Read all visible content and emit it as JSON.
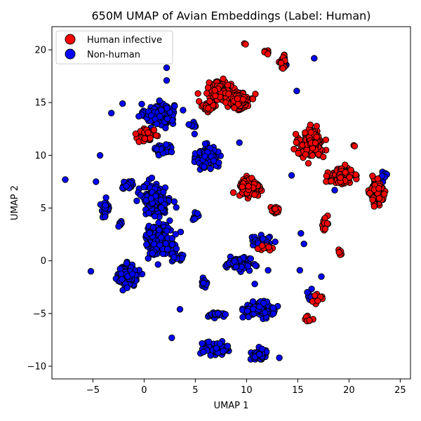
{
  "chart_data": {
    "type": "scatter",
    "title": "650M UMAP of Avian Embeddings (Label: Human)",
    "xlabel": "UMAP 1",
    "ylabel": "UMAP 2",
    "xlim": [
      -9,
      26
    ],
    "ylim": [
      -11.2,
      22.2
    ],
    "xticks": [
      -5,
      0,
      5,
      10,
      15,
      20,
      25
    ],
    "yticks": [
      -10,
      -5,
      0,
      5,
      10,
      15,
      20
    ],
    "grid": false,
    "legend_position": "top-left",
    "series": [
      {
        "name": "Human infective",
        "color": "#ff0000",
        "edge_color": "#000000",
        "clusters": [
          {
            "cx": 7.3,
            "cy": 16.2,
            "sx": 0.9,
            "sy": 0.7,
            "n": 160
          },
          {
            "cx": 9.3,
            "cy": 15.2,
            "sx": 0.9,
            "sy": 0.8,
            "n": 110
          },
          {
            "cx": 6.2,
            "cy": 14.6,
            "sx": 0.6,
            "sy": 0.4,
            "n": 35
          },
          {
            "cx": 10.3,
            "cy": 6.9,
            "sx": 0.9,
            "sy": 0.8,
            "n": 170
          },
          {
            "cx": 12.8,
            "cy": 4.8,
            "sx": 0.6,
            "sy": 0.3,
            "n": 25
          },
          {
            "cx": 16.3,
            "cy": 11.2,
            "sx": 1.0,
            "sy": 1.1,
            "n": 210
          },
          {
            "cx": 19.3,
            "cy": 8.0,
            "sx": 1.1,
            "sy": 0.7,
            "n": 110
          },
          {
            "cx": 22.8,
            "cy": 6.5,
            "sx": 0.7,
            "sy": 1.1,
            "n": 90
          },
          {
            "cx": 0.3,
            "cy": 12.0,
            "sx": 0.8,
            "sy": 0.6,
            "n": 40
          },
          {
            "cx": 17.6,
            "cy": 3.5,
            "sx": 0.3,
            "sy": 0.5,
            "n": 15
          },
          {
            "cx": 13.5,
            "cy": 18.6,
            "sx": 0.3,
            "sy": 0.8,
            "n": 15
          },
          {
            "cx": 16.8,
            "cy": -3.6,
            "sx": 0.5,
            "sy": 0.5,
            "n": 10
          },
          {
            "cx": 15.8,
            "cy": -5.5,
            "sx": 0.4,
            "sy": 0.2,
            "n": 8
          },
          {
            "cx": 19.2,
            "cy": 0.8,
            "sx": 0.3,
            "sy": 0.3,
            "n": 6
          },
          {
            "cx": 11.5,
            "cy": 1.2,
            "sx": 0.8,
            "sy": 0.2,
            "n": 12
          },
          {
            "cx": 12.0,
            "cy": 19.8,
            "sx": 0.3,
            "sy": 0.2,
            "n": 5
          },
          {
            "cx": 9.8,
            "cy": 20.6,
            "sx": 0.1,
            "sy": 0.1,
            "n": 2
          },
          {
            "cx": 20.5,
            "cy": 10.9,
            "sx": 0.1,
            "sy": 0.1,
            "n": 2
          }
        ]
      },
      {
        "name": "Non-human",
        "color": "#0000ff",
        "edge_color": "#000000",
        "clusters": [
          {
            "cx": 1.5,
            "cy": 13.9,
            "sx": 1.3,
            "sy": 0.9,
            "n": 170
          },
          {
            "cx": 1.8,
            "cy": 10.6,
            "sx": 0.9,
            "sy": 0.5,
            "n": 45
          },
          {
            "cx": 6.2,
            "cy": 9.8,
            "sx": 0.9,
            "sy": 0.9,
            "n": 150
          },
          {
            "cx": 1.2,
            "cy": 5.7,
            "sx": 1.2,
            "sy": 1.3,
            "n": 190
          },
          {
            "cx": 1.5,
            "cy": 2.0,
            "sx": 1.3,
            "sy": 1.3,
            "n": 170
          },
          {
            "cx": -1.6,
            "cy": -1.4,
            "sx": 0.9,
            "sy": 0.9,
            "n": 140
          },
          {
            "cx": -3.8,
            "cy": 4.9,
            "sx": 0.4,
            "sy": 0.7,
            "n": 35
          },
          {
            "cx": -1.5,
            "cy": 7.2,
            "sx": 0.5,
            "sy": 0.4,
            "n": 20
          },
          {
            "cx": 9.2,
            "cy": -0.3,
            "sx": 1.1,
            "sy": 0.5,
            "n": 80
          },
          {
            "cx": 11.2,
            "cy": -4.6,
            "sx": 1.3,
            "sy": 0.6,
            "n": 110
          },
          {
            "cx": 7.0,
            "cy": -8.3,
            "sx": 1.1,
            "sy": 0.5,
            "n": 90
          },
          {
            "cx": 11.3,
            "cy": -8.9,
            "sx": 0.8,
            "sy": 0.5,
            "n": 45
          },
          {
            "cx": 11.5,
            "cy": 1.8,
            "sx": 0.9,
            "sy": 0.5,
            "n": 45
          },
          {
            "cx": 3.4,
            "cy": 0.3,
            "sx": 0.7,
            "sy": 0.3,
            "n": 25
          },
          {
            "cx": 7.1,
            "cy": -5.1,
            "sx": 0.8,
            "sy": 0.2,
            "n": 20
          },
          {
            "cx": 5.8,
            "cy": -2.3,
            "sx": 0.3,
            "sy": 0.4,
            "n": 12
          },
          {
            "cx": 16.2,
            "cy": -3.4,
            "sx": 0.4,
            "sy": 0.4,
            "n": 10
          },
          {
            "cx": 13.6,
            "cy": 18.8,
            "sx": 0.3,
            "sy": 0.8,
            "n": 12
          },
          {
            "cx": 23.3,
            "cy": 8.0,
            "sx": 0.4,
            "sy": 0.6,
            "n": 10
          },
          {
            "cx": 4.8,
            "cy": 12.7,
            "sx": 0.4,
            "sy": 0.4,
            "n": 10
          },
          {
            "cx": 5.2,
            "cy": 4.2,
            "sx": 0.4,
            "sy": 0.4,
            "n": 8
          },
          {
            "cx": -2.5,
            "cy": 3.5,
            "sx": 0.3,
            "sy": 0.3,
            "n": 6
          }
        ],
        "points": [
          [
            -7.7,
            7.7
          ],
          [
            -5.2,
            -1.0
          ],
          [
            -4.7,
            7.5
          ],
          [
            -4.3,
            10.0
          ],
          [
            -3.2,
            14.0
          ],
          [
            -2.1,
            14.9
          ],
          [
            2.2,
            17.1
          ],
          [
            2.2,
            18.3
          ],
          [
            2.7,
            -7.3
          ],
          [
            3.5,
            -4.6
          ],
          [
            9.3,
            11.2
          ],
          [
            14.4,
            8.1
          ],
          [
            14.9,
            16.1
          ],
          [
            16.6,
            19.2
          ],
          [
            15.3,
            2.6
          ],
          [
            15.6,
            1.6
          ],
          [
            15.2,
            -0.9
          ],
          [
            17.3,
            -1.5
          ],
          [
            12.1,
            -0.9
          ],
          [
            18.6,
            6.7
          ],
          [
            10.8,
            -2.2
          ],
          [
            13.2,
            -9.2
          ]
        ]
      }
    ]
  }
}
